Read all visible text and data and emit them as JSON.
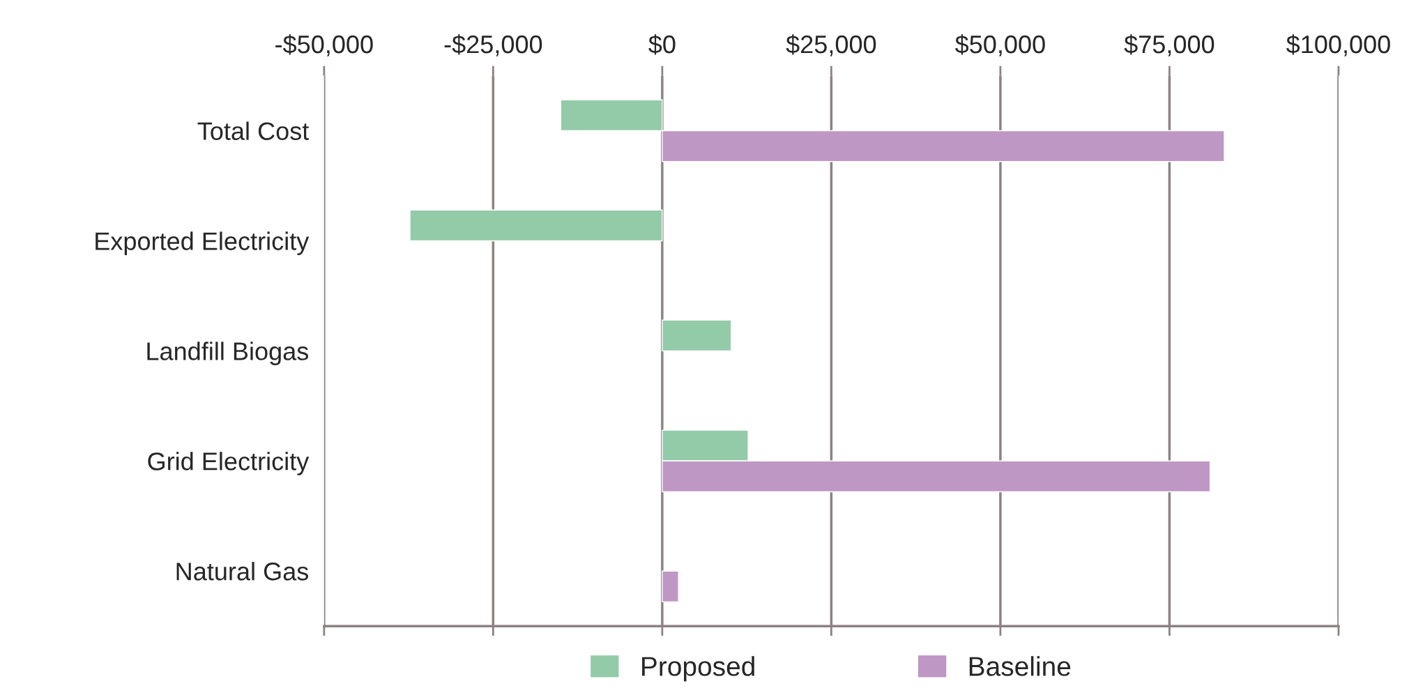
{
  "chart_data": {
    "type": "bar",
    "orientation": "horizontal",
    "categories": [
      "Total Cost",
      "Exported Electricity",
      "Landfill Biogas",
      "Grid Electricity",
      "Natural Gas"
    ],
    "series": [
      {
        "name": "Proposed",
        "color": "#93cba9",
        "values": [
          -15000,
          -37300,
          10200,
          12700,
          null
        ]
      },
      {
        "name": "Baseline",
        "color": "#bf97c4",
        "values": [
          83100,
          null,
          null,
          81000,
          2400
        ]
      }
    ],
    "xlim": [
      -50000,
      100000
    ],
    "xticks": [
      {
        "value": -50000,
        "label": "-$50,000"
      },
      {
        "value": -25000,
        "label": "-$25,000"
      },
      {
        "value": 0,
        "label": "$0"
      },
      {
        "value": 25000,
        "label": "$25,000"
      },
      {
        "value": 50000,
        "label": "$50,000"
      },
      {
        "value": 75000,
        "label": "$75,000"
      },
      {
        "value": 100000,
        "label": "$100,000"
      }
    ],
    "grid": "x",
    "legend": "bottom"
  }
}
